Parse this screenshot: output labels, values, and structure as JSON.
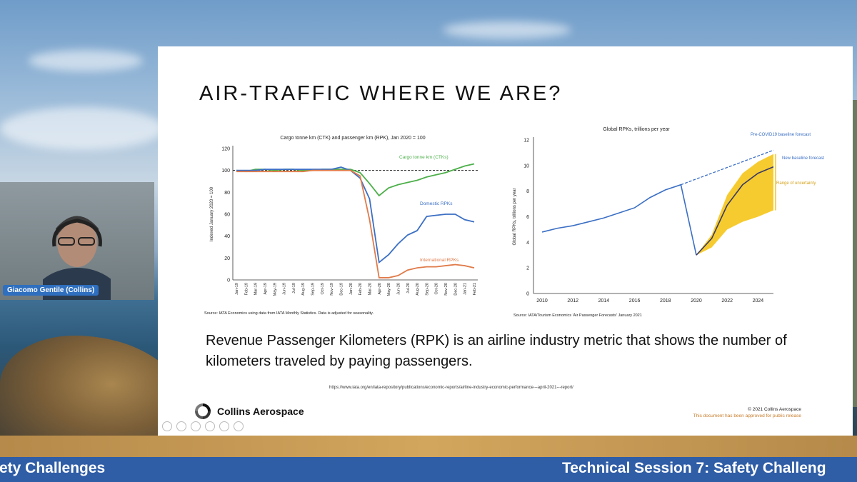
{
  "slide": {
    "title": "AIR-TRAFFIC WHERE WE ARE?",
    "body_text": "Revenue Passenger Kilometers (RPK) is an airline industry metric that shows the number of kilometers traveled by paying passengers.",
    "url": "https://www.iata.org/en/iata-repository/publications/economic-reports/airline-industry-economic-performance---april-2021---report/",
    "logo_text": "Collins Aerospace",
    "copyright": "© 2021 Collins Aerospace",
    "release_note": "This document has been approved for public release"
  },
  "video": {
    "participant_name": "Giacomo Gentile (Collins)"
  },
  "banner": {
    "left_text": "fety Challenges",
    "right_text": "Technical Session 7: Safety Challeng"
  },
  "colors": {
    "cargo": "#4daf4a",
    "domestic": "#3b6fc4",
    "international": "#e07b4a",
    "band": "#f5c518",
    "banner": "#2f5da6"
  },
  "chart_data": [
    {
      "type": "line",
      "title": "Cargo tonne km (CTK) and passenger km (RPK), Jan 2020 = 100",
      "ylabel": "Indexed January 2020 = 100",
      "source": "Source: IATA Economics using data from IATA Monthly Statistics. Data is adjusted for seasonality.",
      "ylim": [
        0,
        120
      ],
      "yticks": [
        0,
        20,
        40,
        60,
        80,
        100,
        120
      ],
      "categories": [
        "Jan-19",
        "Feb-19",
        "Mar-19",
        "Apr-19",
        "May-19",
        "Jun-19",
        "Jul-19",
        "Aug-19",
        "Sep-19",
        "Oct-19",
        "Nov-19",
        "Dec-19",
        "Jan-20",
        "Feb-20",
        "Mar-20",
        "Apr-20",
        "May-20",
        "Jun-20",
        "Jul-20",
        "Aug-20",
        "Sep-20",
        "Oct-20",
        "Nov-20",
        "Dec-20",
        "Jan-21",
        "Feb-21"
      ],
      "reference_line": 100,
      "series": [
        {
          "name": "Cargo tonne km (CTKs)",
          "color": "#4daf4a",
          "values": [
            100,
            99,
            101,
            101,
            100,
            101,
            101,
            100,
            100,
            101,
            101,
            101,
            101,
            98,
            88,
            77,
            84,
            87,
            89,
            91,
            94,
            96,
            98,
            101,
            104,
            106
          ]
        },
        {
          "name": "Domestic RPKs",
          "color": "#3b6fc4",
          "values": [
            100,
            100,
            100,
            101,
            101,
            101,
            101,
            101,
            101,
            101,
            101,
            103,
            100,
            93,
            74,
            16,
            23,
            33,
            41,
            45,
            58,
            59,
            60,
            60,
            55,
            53
          ]
        },
        {
          "name": "International RPKs",
          "color": "#e07b4a",
          "values": [
            99,
            99,
            99,
            99,
            99,
            99,
            99,
            99,
            100,
            100,
            100,
            100,
            100,
            95,
            55,
            2,
            2,
            4,
            9,
            11,
            12,
            12,
            13,
            14,
            13,
            11
          ]
        }
      ]
    },
    {
      "type": "line",
      "title": "Global RPKs, trillions per year",
      "ylabel": "Global RPKs, trillions per year",
      "source": "Source: IATA/Tourism Economics 'Air Passenger Forecasts' January 2021",
      "xlim": [
        2010,
        2025
      ],
      "ylim": [
        0,
        12
      ],
      "xticks": [
        2010,
        2012,
        2014,
        2016,
        2018,
        2020,
        2022,
        2024
      ],
      "yticks": [
        0,
        2,
        4,
        6,
        8,
        10,
        12
      ],
      "series": [
        {
          "name": "",
          "color": "#3b6fc4",
          "x": [
            2010,
            2011,
            2012,
            2013,
            2014,
            2015,
            2016,
            2017,
            2018,
            2019,
            2020
          ],
          "y": [
            4.8,
            5.1,
            5.3,
            5.6,
            5.9,
            6.3,
            6.7,
            7.5,
            8.1,
            8.5,
            3.0
          ]
        },
        {
          "name": "Pre-COVID19 baseline forecast",
          "color": "#3b6fc4",
          "dashed": true,
          "x": [
            2019,
            2025
          ],
          "y": [
            8.5,
            11.2
          ]
        },
        {
          "name": "New baseline forecast",
          "color": "#3a3a66",
          "x": [
            2020,
            2021,
            2022,
            2023,
            2024,
            2025
          ],
          "y": [
            3.0,
            4.3,
            6.9,
            8.5,
            9.4,
            9.9
          ]
        }
      ],
      "band": {
        "name": "Range of uncertainty",
        "color": "#f5c518",
        "x": [
          2020,
          2021,
          2022,
          2023,
          2024,
          2025
        ],
        "low": [
          3.0,
          3.6,
          5.0,
          5.6,
          6.0,
          6.5
        ],
        "high": [
          3.0,
          4.6,
          7.7,
          9.4,
          10.3,
          10.9
        ]
      }
    }
  ]
}
